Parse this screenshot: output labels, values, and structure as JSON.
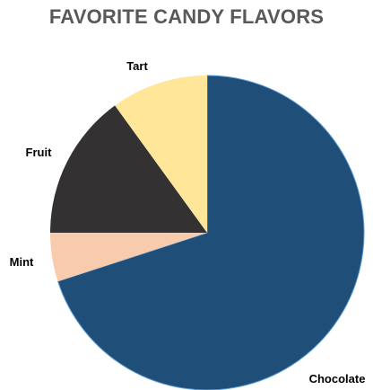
{
  "chart_data": {
    "type": "pie",
    "title": "FAVORITE CANDY FLAVORS",
    "categories": [
      "Chocolate",
      "Mint",
      "Fruit",
      "Tart"
    ],
    "values": [
      70,
      5,
      15,
      10
    ],
    "colors": [
      "#1F4E79",
      "#F8CBAD",
      "#333132",
      "#FFE699"
    ],
    "start_angle_deg": 0,
    "direction": "clockwise",
    "legend": "none",
    "labels": "outside"
  }
}
